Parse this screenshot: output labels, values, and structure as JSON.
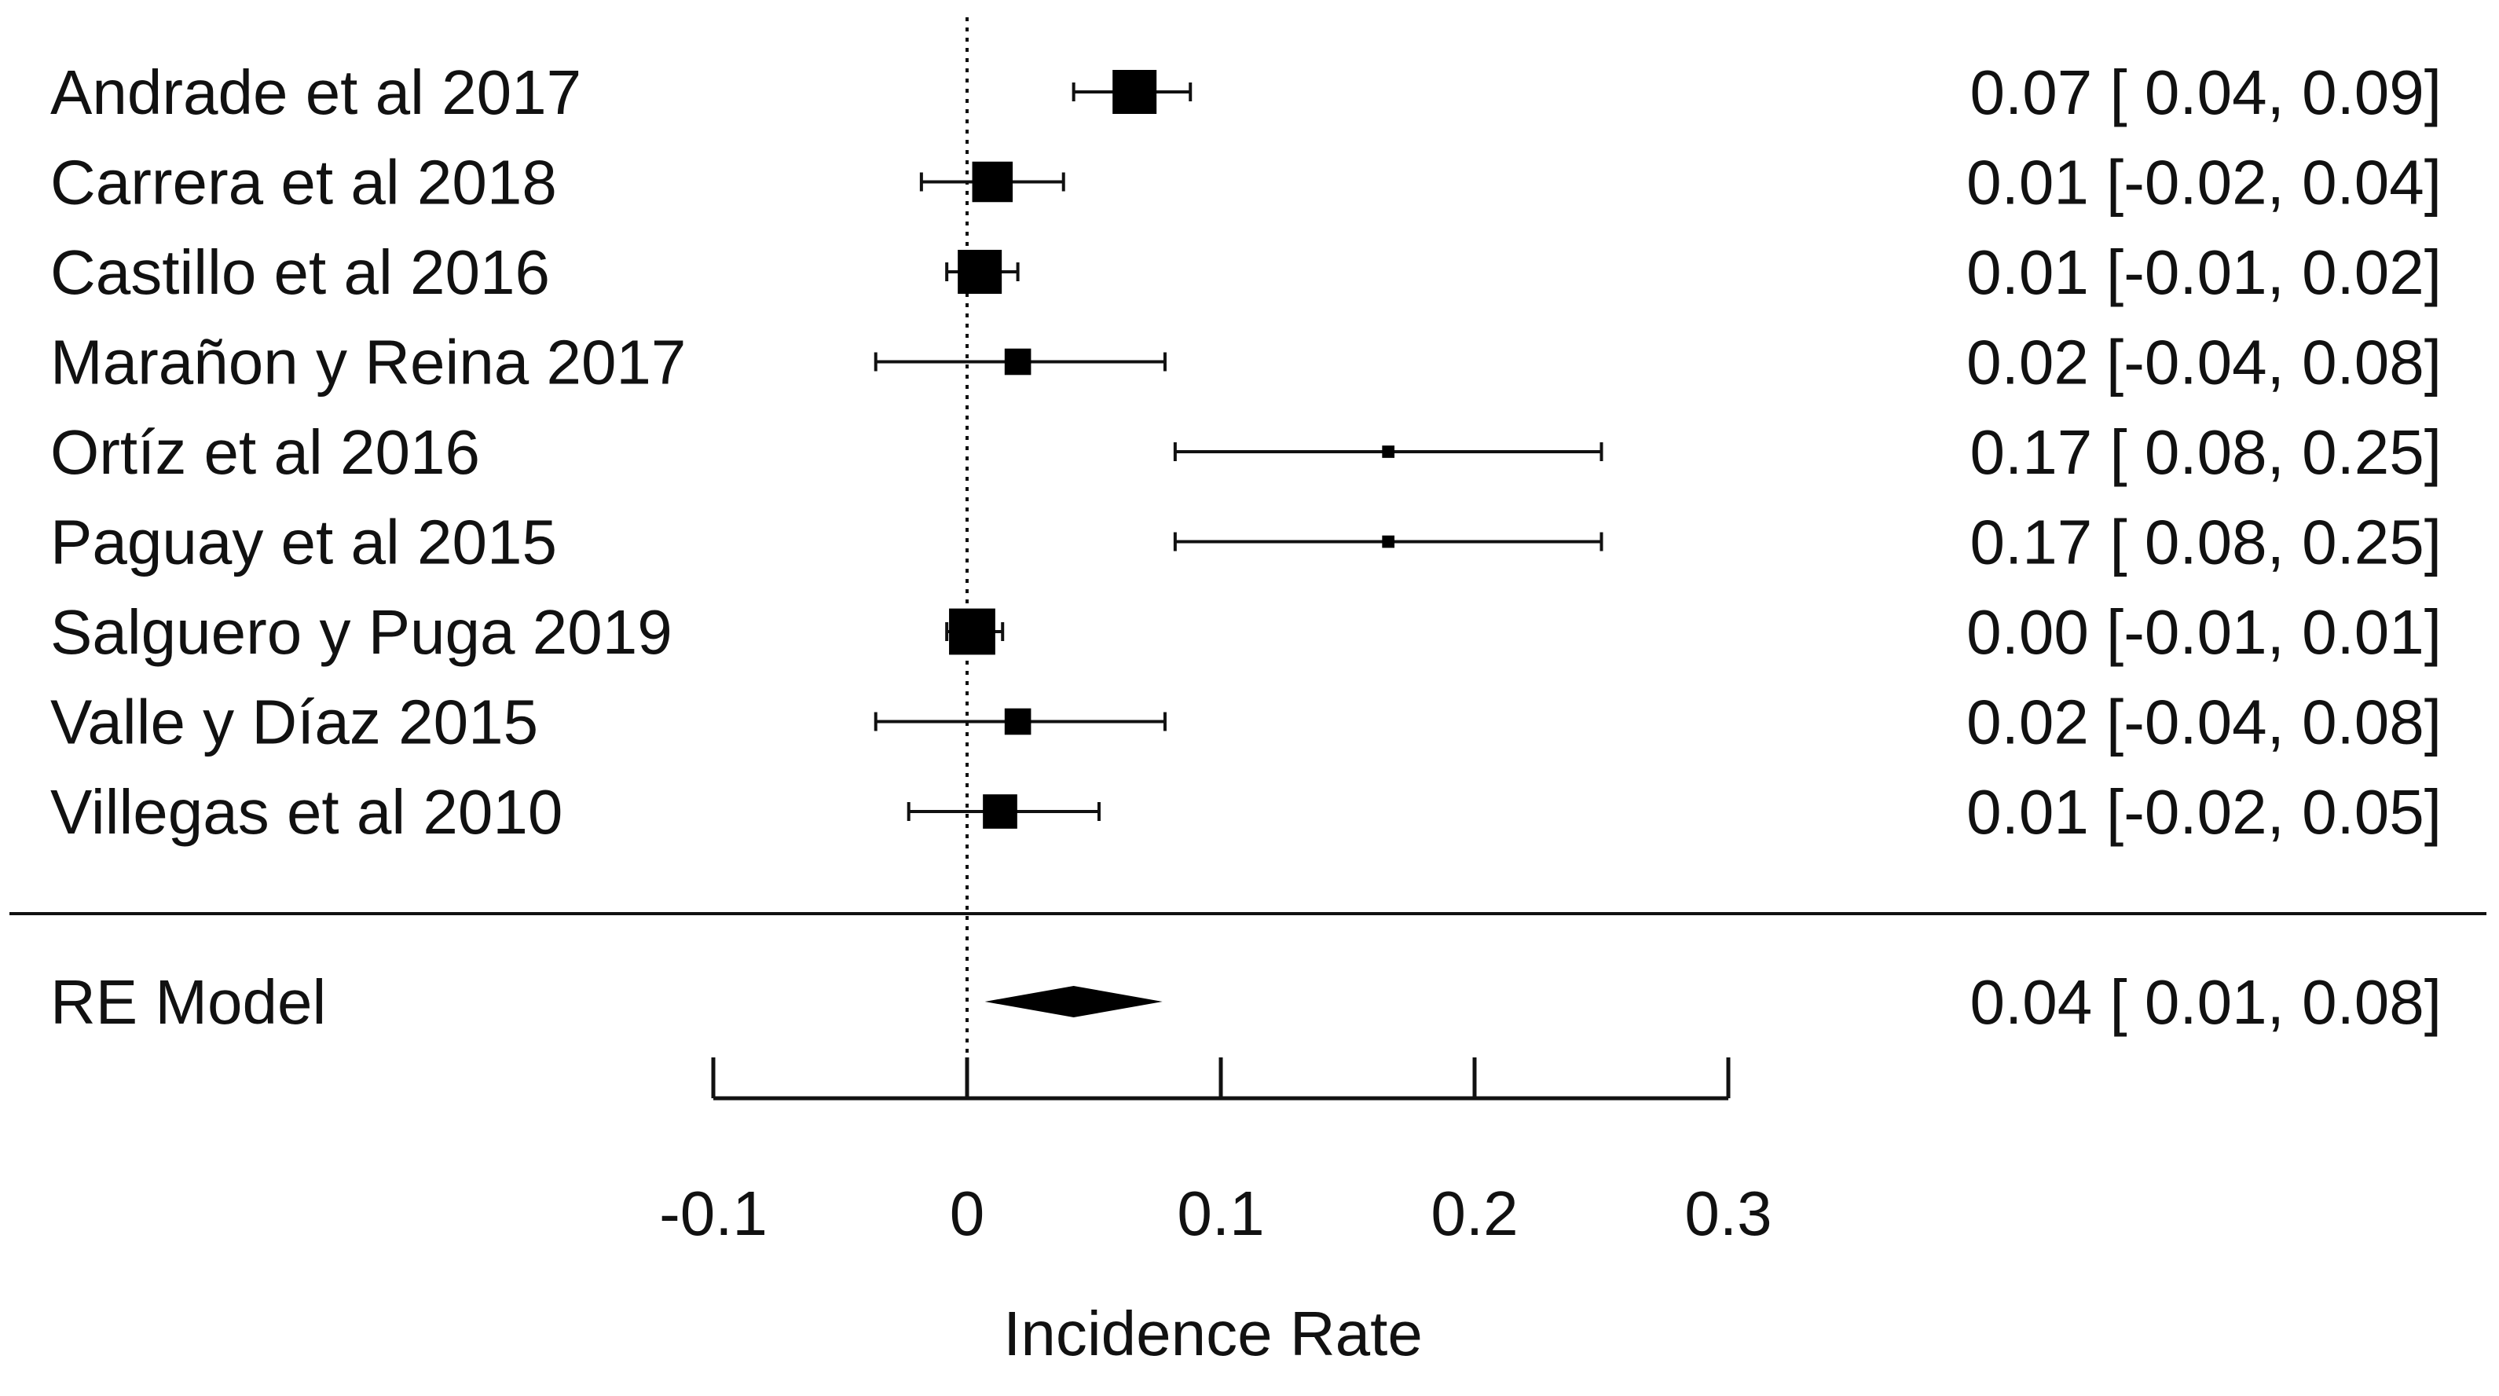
{
  "chart_data": {
    "type": "forest",
    "xlabel": "Incidence Rate",
    "xlim": [
      -0.1,
      0.3
    ],
    "ticks": [
      -0.1,
      0,
      0.1,
      0.2,
      0.3
    ],
    "tick_labels": [
      "-0.1",
      "0",
      "0.1",
      "0.2",
      "0.3"
    ],
    "reference_line": 0,
    "studies": [
      {
        "name": "Andrade et al 2017",
        "estimate": 0.066,
        "lower": 0.042,
        "upper": 0.088,
        "weight": 1.0,
        "text": "0.07 [ 0.04, 0.09]"
      },
      {
        "name": "Carrera et al 2018",
        "estimate": 0.01,
        "lower": -0.018,
        "upper": 0.038,
        "weight": 0.92,
        "text": "0.01 [-0.02, 0.04]"
      },
      {
        "name": "Castillo et al 2016",
        "estimate": 0.005,
        "lower": -0.008,
        "upper": 0.02,
        "weight": 1.0,
        "text": "0.01 [-0.01, 0.02]"
      },
      {
        "name": "Marañon y Reina 2017",
        "estimate": 0.02,
        "lower": -0.036,
        "upper": 0.078,
        "weight": 0.6,
        "text": "0.02 [-0.04, 0.08]"
      },
      {
        "name": "Ortíz et al 2016",
        "estimate": 0.166,
        "lower": 0.082,
        "upper": 0.25,
        "weight": 0.28,
        "text": "0.17 [ 0.08, 0.25]"
      },
      {
        "name": "Paguay et al 2015",
        "estimate": 0.166,
        "lower": 0.082,
        "upper": 0.25,
        "weight": 0.28,
        "text": "0.17 [ 0.08, 0.25]"
      },
      {
        "name": "Salguero y Puga 2019",
        "estimate": 0.002,
        "lower": -0.008,
        "upper": 0.014,
        "weight": 1.05,
        "text": "0.00 [-0.01, 0.01]"
      },
      {
        "name": "Valle y Díaz 2015",
        "estimate": 0.02,
        "lower": -0.036,
        "upper": 0.078,
        "weight": 0.6,
        "text": "0.02 [-0.04, 0.08]"
      },
      {
        "name": "Villegas et al 2010",
        "estimate": 0.013,
        "lower": -0.023,
        "upper": 0.052,
        "weight": 0.78,
        "text": "0.01 [-0.02, 0.05]"
      }
    ],
    "summary": {
      "name": "RE Model",
      "estimate": 0.042,
      "lower": 0.007,
      "upper": 0.077,
      "text": "0.04 [ 0.01, 0.08]"
    }
  }
}
